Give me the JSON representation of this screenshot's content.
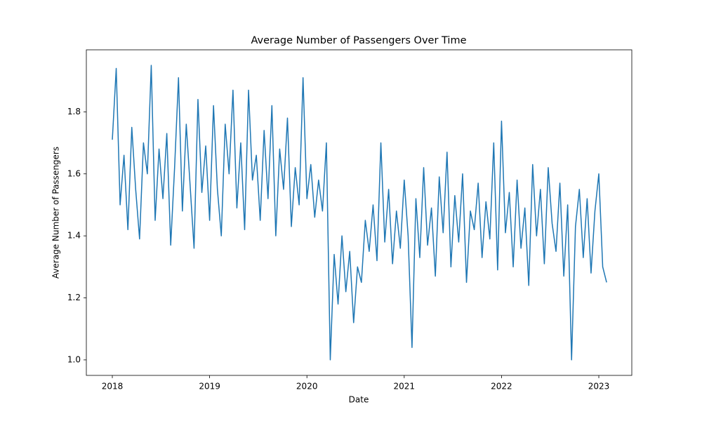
{
  "chart_data": {
    "type": "line",
    "title": "Average Number of Passengers Over Time",
    "x_label": "Date",
    "y_label": "Average Number of Passengers",
    "color": "#1f77b4",
    "x": [
      2018.0,
      2018.04,
      2018.08,
      2018.12,
      2018.16,
      2018.2,
      2018.24,
      2018.28,
      2018.32,
      2018.36,
      2018.4,
      2018.44,
      2018.48,
      2018.52,
      2018.56,
      2018.6,
      2018.64,
      2018.68,
      2018.72,
      2018.76,
      2018.8,
      2018.84,
      2018.88,
      2018.92,
      2018.96,
      2019.0,
      2019.04,
      2019.08,
      2019.12,
      2019.16,
      2019.2,
      2019.24,
      2019.28,
      2019.32,
      2019.36,
      2019.4,
      2019.44,
      2019.48,
      2019.52,
      2019.56,
      2019.6,
      2019.64,
      2019.68,
      2019.72,
      2019.76,
      2019.8,
      2019.84,
      2019.88,
      2019.92,
      2019.96,
      2020.0,
      2020.04,
      2020.08,
      2020.12,
      2020.16,
      2020.2,
      2020.24,
      2020.28,
      2020.32,
      2020.36,
      2020.4,
      2020.44,
      2020.48,
      2020.52,
      2020.56,
      2020.6,
      2020.64,
      2020.68,
      2020.72,
      2020.76,
      2020.8,
      2020.84,
      2020.88,
      2020.92,
      2020.96,
      2021.0,
      2021.04,
      2021.08,
      2021.12,
      2021.16,
      2021.2,
      2021.24,
      2021.28,
      2021.32,
      2021.36,
      2021.4,
      2021.44,
      2021.48,
      2021.52,
      2021.56,
      2021.6,
      2021.64,
      2021.68,
      2021.72,
      2021.76,
      2021.8,
      2021.84,
      2021.88,
      2021.92,
      2021.96,
      2022.0,
      2022.04,
      2022.08,
      2022.12,
      2022.16,
      2022.2,
      2022.24,
      2022.28,
      2022.32,
      2022.36,
      2022.4,
      2022.44,
      2022.48,
      2022.52,
      2022.56,
      2022.6,
      2022.64,
      2022.68,
      2022.72,
      2022.76,
      2022.8,
      2022.84,
      2022.88,
      2022.92,
      2022.96,
      2023.0,
      2023.04,
      2023.08
    ],
    "values": [
      1.71,
      1.94,
      1.5,
      1.66,
      1.42,
      1.75,
      1.55,
      1.39,
      1.7,
      1.6,
      1.95,
      1.45,
      1.68,
      1.52,
      1.73,
      1.37,
      1.62,
      1.91,
      1.48,
      1.76,
      1.56,
      1.36,
      1.84,
      1.54,
      1.69,
      1.45,
      1.82,
      1.55,
      1.4,
      1.76,
      1.6,
      1.87,
      1.49,
      1.7,
      1.42,
      1.87,
      1.58,
      1.66,
      1.45,
      1.74,
      1.52,
      1.82,
      1.4,
      1.68,
      1.55,
      1.78,
      1.43,
      1.62,
      1.5,
      1.91,
      1.52,
      1.63,
      1.46,
      1.58,
      1.48,
      1.7,
      1.0,
      1.34,
      1.18,
      1.4,
      1.22,
      1.35,
      1.12,
      1.3,
      1.25,
      1.45,
      1.35,
      1.5,
      1.32,
      1.7,
      1.38,
      1.55,
      1.31,
      1.48,
      1.36,
      1.58,
      1.4,
      1.04,
      1.52,
      1.33,
      1.62,
      1.37,
      1.49,
      1.27,
      1.59,
      1.41,
      1.67,
      1.3,
      1.53,
      1.38,
      1.6,
      1.25,
      1.48,
      1.42,
      1.57,
      1.33,
      1.51,
      1.39,
      1.7,
      1.29,
      1.77,
      1.41,
      1.54,
      1.3,
      1.58,
      1.36,
      1.49,
      1.24,
      1.63,
      1.4,
      1.55,
      1.31,
      1.62,
      1.44,
      1.35,
      1.57,
      1.27,
      1.5,
      1.0,
      1.43,
      1.55,
      1.33,
      1.52,
      1.28,
      1.48,
      1.6,
      1.3,
      1.25
    ],
    "xlim": [
      2017.733,
      2023.339
    ],
    "xticks": [
      2018,
      2019,
      2020,
      2021,
      2022,
      2023
    ],
    "ylim": [
      0.95,
      2.0
    ],
    "yticks": [
      {
        "value": 1.0,
        "label": "1.0"
      },
      1.2,
      1.4,
      1.6,
      1.8
    ],
    "grid": false
  }
}
